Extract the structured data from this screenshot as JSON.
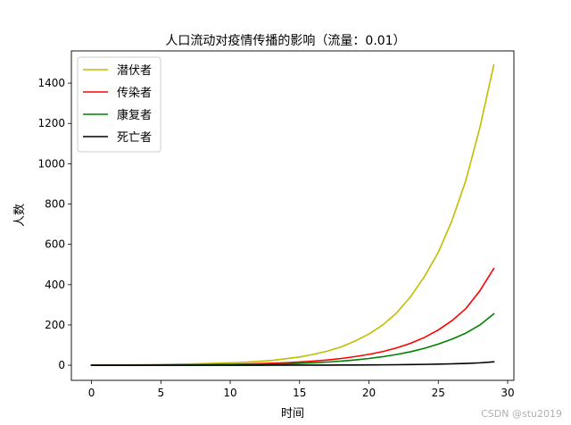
{
  "chart_data": {
    "type": "line",
    "title": "人口流动对疫情传播的影响（流量：0.01）",
    "xlabel": "时间",
    "ylabel": "人数",
    "xlim": [
      -1.45,
      30.45
    ],
    "ylim": [
      -75,
      1560
    ],
    "xticks": [
      0,
      5,
      10,
      15,
      20,
      25,
      30
    ],
    "yticks": [
      0,
      200,
      400,
      600,
      800,
      1000,
      1200,
      1400
    ],
    "legend_position": "top-left",
    "grid": false,
    "x": [
      0,
      1,
      2,
      3,
      4,
      5,
      6,
      7,
      8,
      9,
      10,
      11,
      12,
      13,
      14,
      15,
      16,
      17,
      18,
      19,
      20,
      21,
      22,
      23,
      24,
      25,
      26,
      27,
      28,
      29
    ],
    "series": [
      {
        "name": "潜伏者",
        "color": "#bfbf00",
        "values": [
          1,
          1.5,
          2,
          2.5,
          3,
          4,
          5,
          6,
          8,
          10,
          12,
          15,
          19,
          24,
          32,
          41,
          54,
          70,
          91,
          120,
          155,
          200,
          260,
          340,
          440,
          560,
          720,
          920,
          1180,
          1490
        ]
      },
      {
        "name": "传染者",
        "color": "#ff0000",
        "values": [
          0,
          0.5,
          0.7,
          0.9,
          1.1,
          1.4,
          1.8,
          2.3,
          3,
          3.8,
          4.8,
          6,
          7.7,
          9.8,
          12.5,
          16,
          20.5,
          26.2,
          33.5,
          43,
          54,
          68,
          86,
          109,
          138,
          175,
          222,
          282,
          370,
          480
        ]
      },
      {
        "name": "康复者",
        "color": "#008000",
        "values": [
          0,
          0,
          0.1,
          0.2,
          0.3,
          0.5,
          0.7,
          1,
          1.3,
          1.8,
          2.4,
          3.2,
          4.2,
          5.5,
          7.2,
          9.4,
          12.2,
          15.8,
          20.4,
          26.2,
          33.5,
          42.5,
          53.5,
          67,
          84,
          105,
          130,
          160,
          200,
          255
        ]
      },
      {
        "name": "死亡者",
        "color": "#000000",
        "values": [
          0,
          0,
          0,
          0,
          0,
          0,
          0,
          0,
          0.1,
          0.1,
          0.1,
          0.2,
          0.2,
          0.3,
          0.4,
          0.5,
          0.6,
          0.8,
          1,
          1.3,
          1.6,
          2,
          2.6,
          3.3,
          4.2,
          5.4,
          7,
          9,
          12,
          17
        ]
      }
    ]
  },
  "watermark": "CSDN @stu2019"
}
